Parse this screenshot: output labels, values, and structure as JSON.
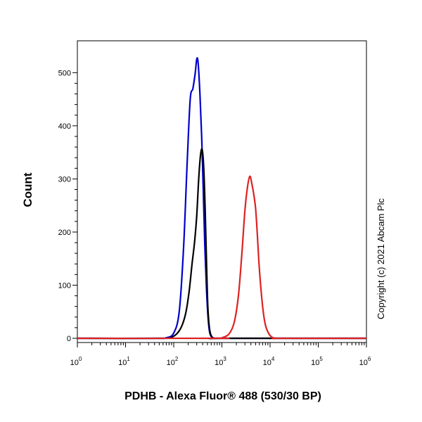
{
  "chart_data": {
    "type": "line",
    "title": "",
    "xlabel": "PDHB - Alexa Fluor® 488 (530/30 BP)",
    "ylabel": "Count",
    "xscale": "log",
    "xlim": [
      1,
      1000000
    ],
    "ylim": [
      0,
      560
    ],
    "x_ticks": [
      {
        "base": "10",
        "exp": "0"
      },
      {
        "base": "10",
        "exp": "1"
      },
      {
        "base": "10",
        "exp": "2"
      },
      {
        "base": "10",
        "exp": "3"
      },
      {
        "base": "10",
        "exp": "4"
      },
      {
        "base": "10",
        "exp": "5"
      },
      {
        "base": "10",
        "exp": "6"
      }
    ],
    "y_ticks": [
      "0",
      "100",
      "200",
      "300",
      "400",
      "500"
    ],
    "grid": false,
    "legend": "none",
    "annotation": "Copyright (c) 2021 Abcam Plc",
    "series": [
      {
        "color": "#0000cc",
        "x": [
          1,
          40,
          70,
          100,
          130,
          160,
          190,
          220,
          250,
          280,
          300,
          320,
          350,
          380,
          410,
          440,
          480,
          520,
          560,
          620,
          700,
          850,
          1000,
          1000000
        ],
        "y": [
          0,
          0,
          1,
          10,
          50,
          170,
          330,
          450,
          470,
          500,
          525,
          520,
          460,
          380,
          280,
          180,
          90,
          35,
          10,
          2,
          0,
          0,
          0,
          0
        ]
      },
      {
        "color": "#000000",
        "x": [
          1,
          60,
          90,
          120,
          150,
          180,
          210,
          240,
          270,
          300,
          330,
          360,
          390,
          420,
          450,
          480,
          510,
          550,
          600,
          700,
          1000,
          1000000
        ],
        "y": [
          0,
          0,
          2,
          10,
          25,
          50,
          90,
          140,
          180,
          230,
          300,
          345,
          355,
          320,
          240,
          140,
          60,
          20,
          5,
          0,
          0,
          0
        ]
      },
      {
        "color": "#dd2222",
        "x": [
          1,
          800,
          1000,
          1400,
          1800,
          2200,
          2600,
          3000,
          3400,
          3800,
          4200,
          4600,
          5000,
          5400,
          6000,
          7000,
          8000,
          9500,
          11000,
          13000,
          16000,
          1000000
        ],
        "y": [
          0,
          0,
          1,
          8,
          30,
          80,
          160,
          240,
          285,
          305,
          290,
          270,
          245,
          200,
          130,
          60,
          25,
          8,
          2,
          0,
          0,
          0
        ]
      }
    ]
  }
}
